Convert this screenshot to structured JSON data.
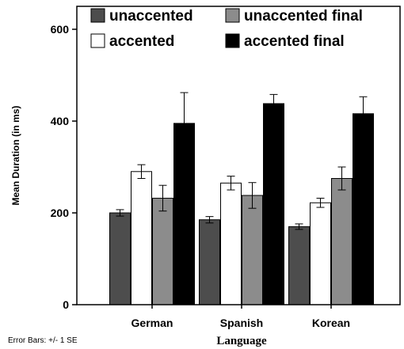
{
  "chart_data": {
    "type": "bar",
    "title": "",
    "xlabel": "Language",
    "ylabel": "Mean Duration (in ms)",
    "ylim": [
      0,
      650
    ],
    "yticks": [
      0,
      200,
      400,
      600
    ],
    "categories": [
      "German",
      "Spanish",
      "Korean"
    ],
    "series": [
      {
        "name": "unaccented",
        "color": "#4d4d4d",
        "values": [
          200,
          185,
          170
        ],
        "errors": [
          7,
          7,
          6
        ]
      },
      {
        "name": "accented",
        "color": "#ffffff",
        "values": [
          290,
          265,
          222
        ],
        "errors": [
          15,
          15,
          10
        ]
      },
      {
        "name": "unaccented final",
        "color": "#8c8c8c",
        "values": [
          232,
          238,
          275
        ],
        "errors": [
          28,
          28,
          25
        ]
      },
      {
        "name": "accented final",
        "color": "#000000",
        "values": [
          395,
          438,
          416
        ],
        "errors": [
          67,
          20,
          37
        ]
      }
    ],
    "legend_position": "top",
    "grid": false,
    "error_bar_note": "Error Bars: +/- 1 SE"
  }
}
